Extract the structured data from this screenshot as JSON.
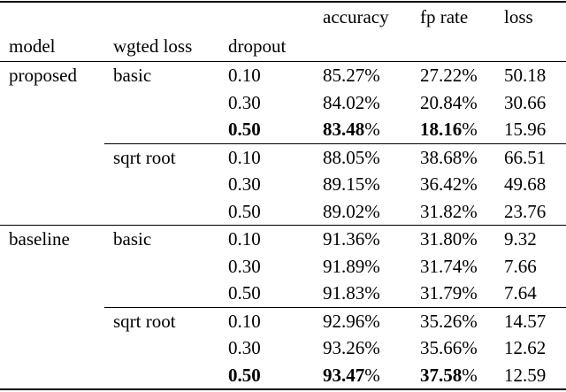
{
  "page": {
    "background_color": "#ffffff",
    "text_color": "#000000",
    "rule_color": "#000000"
  },
  "table": {
    "percent_sign": "%",
    "header": {
      "top_labels": {
        "accuracy": "accuracy",
        "fp_rate": "fp rate",
        "loss": "loss"
      },
      "bottom_labels": {
        "model": "model",
        "wgted_loss": "wgted loss",
        "dropout": "dropout"
      }
    },
    "rows": [
      {
        "model": "proposed",
        "wgted_loss": "basic",
        "dropout": "0.10",
        "accuracy": "85.27",
        "fp_rate": "27.22",
        "loss": "50.18",
        "bold": false,
        "rule_after": "none"
      },
      {
        "model": "",
        "wgted_loss": "",
        "dropout": "0.30",
        "accuracy": "84.02",
        "fp_rate": "20.84",
        "loss": "30.66",
        "bold": false,
        "rule_after": "none"
      },
      {
        "model": "",
        "wgted_loss": "",
        "dropout": "0.50",
        "accuracy": "83.48",
        "fp_rate": "18.16",
        "loss": "15.96",
        "bold": true,
        "rule_after": "cmid"
      },
      {
        "model": "",
        "wgted_loss": "sqrt root",
        "dropout": "0.10",
        "accuracy": "88.05",
        "fp_rate": "38.68",
        "loss": "66.51",
        "bold": false,
        "rule_after": "none"
      },
      {
        "model": "",
        "wgted_loss": "",
        "dropout": "0.30",
        "accuracy": "89.15",
        "fp_rate": "36.42",
        "loss": "49.68",
        "bold": false,
        "rule_after": "none"
      },
      {
        "model": "",
        "wgted_loss": "",
        "dropout": "0.50",
        "accuracy": "89.02",
        "fp_rate": "31.82",
        "loss": "23.76",
        "bold": false,
        "rule_after": "full"
      },
      {
        "model": "baseline",
        "wgted_loss": "basic",
        "dropout": "0.10",
        "accuracy": "91.36",
        "fp_rate": "31.80",
        "loss": "9.32",
        "bold": false,
        "rule_after": "none"
      },
      {
        "model": "",
        "wgted_loss": "",
        "dropout": "0.30",
        "accuracy": "91.89",
        "fp_rate": "31.74",
        "loss": "7.66",
        "bold": false,
        "rule_after": "none"
      },
      {
        "model": "",
        "wgted_loss": "",
        "dropout": "0.50",
        "accuracy": "91.83",
        "fp_rate": "31.79",
        "loss": "7.64",
        "bold": false,
        "rule_after": "cmid"
      },
      {
        "model": "",
        "wgted_loss": "sqrt root",
        "dropout": "0.10",
        "accuracy": "92.96",
        "fp_rate": "35.26",
        "loss": "14.57",
        "bold": false,
        "rule_after": "none"
      },
      {
        "model": "",
        "wgted_loss": "",
        "dropout": "0.30",
        "accuracy": "93.26",
        "fp_rate": "35.66",
        "loss": "12.62",
        "bold": false,
        "rule_after": "none"
      },
      {
        "model": "",
        "wgted_loss": "",
        "dropout": "0.50",
        "accuracy": "93.47",
        "fp_rate": "37.58",
        "loss": "12.59",
        "bold": true,
        "rule_after": "none"
      }
    ]
  }
}
